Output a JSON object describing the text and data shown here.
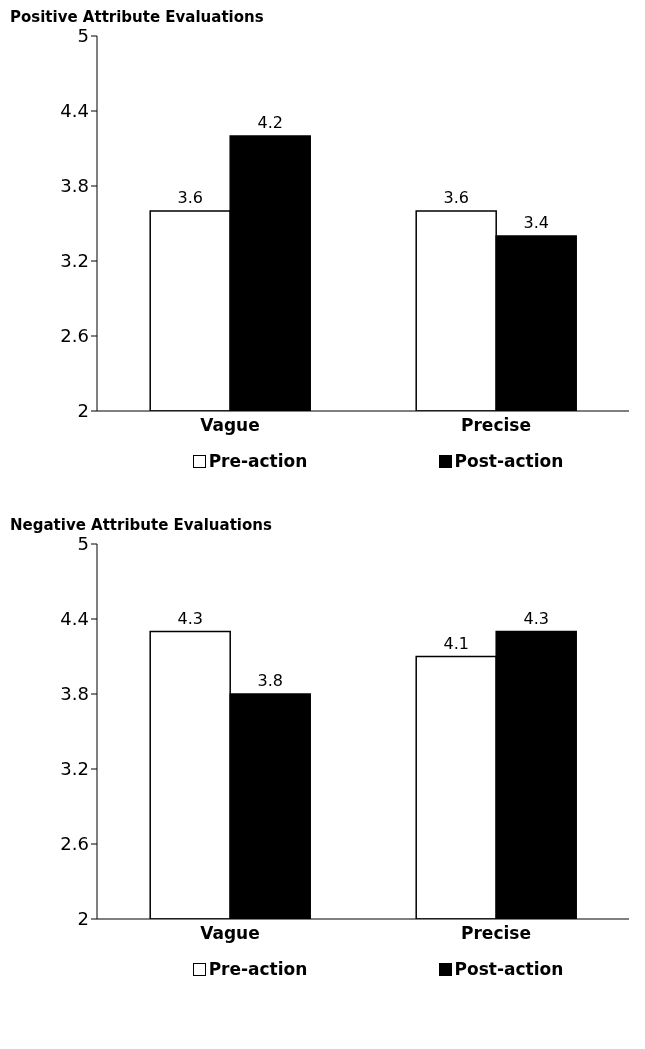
{
  "chart_data": [
    {
      "type": "bar",
      "title": "Positive Attribute Evaluations",
      "categories": [
        "Vague",
        "Precise"
      ],
      "series": [
        {
          "name": "Pre-action",
          "color": "#ffffff",
          "values": [
            3.6,
            3.6
          ]
        },
        {
          "name": "Post-action",
          "color": "#000000",
          "values": [
            4.2,
            3.4
          ]
        }
      ],
      "ylim": [
        2,
        5
      ],
      "yticks": [
        2,
        2.6,
        3.2,
        3.8,
        4.4,
        5
      ],
      "grid": false,
      "legend": "bottom",
      "data_labels": true
    },
    {
      "type": "bar",
      "title": "Negative Attribute Evaluations",
      "categories": [
        "Vague",
        "Precise"
      ],
      "series": [
        {
          "name": "Pre-action",
          "color": "#ffffff",
          "values": [
            4.3,
            4.1
          ]
        },
        {
          "name": "Post-action",
          "color": "#000000",
          "values": [
            3.8,
            4.3
          ]
        }
      ],
      "ylim": [
        2,
        5
      ],
      "yticks": [
        2,
        2.6,
        3.2,
        3.8,
        4.4,
        5
      ],
      "grid": false,
      "legend": "bottom",
      "data_labels": true
    }
  ]
}
